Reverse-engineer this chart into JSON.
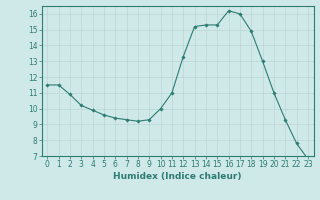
{
  "x": [
    0,
    1,
    2,
    3,
    4,
    5,
    6,
    7,
    8,
    9,
    10,
    11,
    12,
    13,
    14,
    15,
    16,
    17,
    18,
    19,
    20,
    21,
    22,
    23
  ],
  "y": [
    11.5,
    11.5,
    10.9,
    10.2,
    9.9,
    9.6,
    9.4,
    9.3,
    9.2,
    9.3,
    10.0,
    11.0,
    13.3,
    15.2,
    15.3,
    15.3,
    16.2,
    16.0,
    14.9,
    13.0,
    11.0,
    9.3,
    7.8,
    6.8
  ],
  "xlabel": "Humidex (Indice chaleur)",
  "ylim": [
    7,
    16.5
  ],
  "xlim": [
    -0.5,
    23.5
  ],
  "yticks": [
    7,
    8,
    9,
    10,
    11,
    12,
    13,
    14,
    15,
    16
  ],
  "xticks": [
    0,
    1,
    2,
    3,
    4,
    5,
    6,
    7,
    8,
    9,
    10,
    11,
    12,
    13,
    14,
    15,
    16,
    17,
    18,
    19,
    20,
    21,
    22,
    23
  ],
  "line_color": "#2d7d6f",
  "marker": "D",
  "marker_size": 1.8,
  "bg_color": "#cfe8e8",
  "grid_color": "#b8d0d0",
  "axes_color": "#2d7d6f",
  "tick_color": "#2d7d6f",
  "label_color": "#2d7d6f",
  "font_size_ticks": 5.5,
  "font_size_label": 6.5
}
